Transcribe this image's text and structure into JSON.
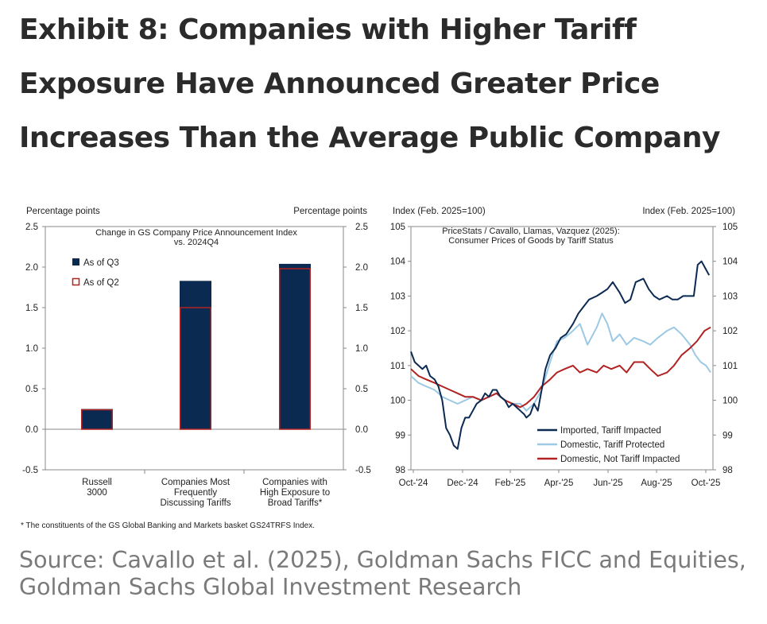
{
  "title": "Exhibit 8: Companies with Higher Tariff Exposure Have Announced Greater Price Increases Than the Average Public Company",
  "footnote": "* The constituents of the GS Global Banking and Markets basket GS24TRFS Index.",
  "source": "Source: Cavallo et al. (2025), Goldman Sachs FICC and Equities, Goldman Sachs Global Investment Research",
  "colors": {
    "navy": "#0b2a52",
    "red": "#b22222",
    "light_blue": "#9cc9e4",
    "axis": "#888888"
  },
  "chart_data": [
    {
      "type": "bar",
      "title": [
        "Change in GS Company Price Announcement Index",
        "vs. 2024Q4"
      ],
      "ylabel_left": "Percentage points",
      "ylabel_right": "Percentage points",
      "ylim": [
        -0.5,
        2.5
      ],
      "yticks": [
        "-0.5",
        "0.0",
        "0.5",
        "1.0",
        "1.5",
        "2.0",
        "2.5"
      ],
      "categories": [
        [
          "Russell",
          "3000"
        ],
        [
          "Companies Most",
          "Frequently",
          "Discussing Tariffs"
        ],
        [
          "Companies with",
          "High Exposure to",
          "Broad Tariffs*"
        ]
      ],
      "series": [
        {
          "name": "As of Q3",
          "values": [
            0.25,
            1.83,
            2.04
          ],
          "color": "#0b2a52"
        },
        {
          "name": "As of Q2",
          "values": [
            0.24,
            1.5,
            1.98
          ],
          "color": "#b22222",
          "style": "outline"
        }
      ],
      "legend": "top-left",
      "grid": false
    },
    {
      "type": "line",
      "title": [
        "PriceStats / Cavallo, Llamas, Vazquez (2025):",
        "Consumer Prices of Goods by Tariff Status"
      ],
      "ylabel_left": "Index (Feb. 2025=100)",
      "ylabel_right": "Index (Feb. 2025=100)",
      "ylim": [
        98,
        105
      ],
      "yticks": [
        "98",
        "99",
        "100",
        "101",
        "102",
        "103",
        "104",
        "105"
      ],
      "xlim": [
        "2024-10-01",
        "2025-10-31"
      ],
      "xticks": [
        "Oct-'24",
        "Dec-'24",
        "Feb-'25",
        "Apr-'25",
        "Jun-'25",
        "Aug-'25",
        "Oct-'25"
      ],
      "legend": "bottom-right",
      "grid": false,
      "series": [
        {
          "name": "Imported, Tariff Impacted",
          "color": "#0b2a52",
          "x": [
            "2024-10-01",
            "2024-10-06",
            "2024-10-11",
            "2024-10-16",
            "2024-10-21",
            "2024-10-26",
            "2024-11-01",
            "2024-11-06",
            "2024-11-11",
            "2024-11-16",
            "2024-11-21",
            "2024-11-26",
            "2024-12-01",
            "2024-12-06",
            "2024-12-11",
            "2024-12-16",
            "2024-12-21",
            "2024-12-26",
            "2025-01-01",
            "2025-01-06",
            "2025-01-11",
            "2025-01-16",
            "2025-01-21",
            "2025-01-26",
            "2025-02-01",
            "2025-02-06",
            "2025-02-11",
            "2025-02-16",
            "2025-02-21",
            "2025-02-26",
            "2025-03-01",
            "2025-03-06",
            "2025-03-11",
            "2025-03-16",
            "2025-03-21",
            "2025-03-26",
            "2025-04-01",
            "2025-04-08",
            "2025-04-15",
            "2025-04-22",
            "2025-05-01",
            "2025-05-08",
            "2025-05-15",
            "2025-05-22",
            "2025-06-01",
            "2025-06-08",
            "2025-06-15",
            "2025-06-22",
            "2025-07-01",
            "2025-07-08",
            "2025-07-15",
            "2025-07-22",
            "2025-08-01",
            "2025-08-08",
            "2025-08-15",
            "2025-08-22",
            "2025-09-01",
            "2025-09-08",
            "2025-09-15",
            "2025-09-22",
            "2025-10-01",
            "2025-10-06",
            "2025-10-11",
            "2025-10-16",
            "2025-10-21",
            "2025-10-26"
          ],
          "y": [
            101.4,
            101.1,
            101.0,
            100.9,
            101.0,
            100.7,
            100.6,
            100.4,
            100.0,
            99.2,
            99.0,
            98.7,
            98.6,
            99.2,
            99.5,
            99.5,
            99.7,
            99.9,
            100.0,
            100.2,
            100.1,
            100.3,
            100.3,
            100.1,
            100.0,
            99.8,
            99.9,
            99.8,
            99.7,
            99.6,
            99.5,
            99.6,
            99.9,
            99.7,
            100.3,
            100.9,
            101.3,
            101.5,
            101.8,
            101.9,
            102.2,
            102.5,
            102.7,
            102.9,
            103.0,
            103.1,
            103.2,
            103.4,
            103.1,
            102.8,
            102.9,
            103.4,
            103.5,
            103.2,
            103.0,
            102.9,
            103.0,
            102.9,
            102.9,
            103.0,
            103.0,
            103.0,
            103.9,
            104.0,
            103.8,
            103.6
          ]
        },
        {
          "name": "Domestic, Tariff Protected",
          "color": "#9cc9e4",
          "x": [
            "2024-10-01",
            "2024-10-11",
            "2024-10-21",
            "2024-11-01",
            "2024-11-11",
            "2024-11-21",
            "2024-12-01",
            "2024-12-11",
            "2024-12-21",
            "2025-01-01",
            "2025-01-11",
            "2025-01-21",
            "2025-02-01",
            "2025-02-11",
            "2025-02-21",
            "2025-03-01",
            "2025-03-11",
            "2025-03-21",
            "2025-04-01",
            "2025-04-10",
            "2025-04-20",
            "2025-05-01",
            "2025-05-10",
            "2025-05-20",
            "2025-06-01",
            "2025-06-08",
            "2025-06-15",
            "2025-06-22",
            "2025-07-01",
            "2025-07-10",
            "2025-07-20",
            "2025-08-01",
            "2025-08-10",
            "2025-08-20",
            "2025-09-01",
            "2025-09-10",
            "2025-09-20",
            "2025-10-01",
            "2025-10-08",
            "2025-10-15",
            "2025-10-22",
            "2025-10-28"
          ],
          "y": [
            100.7,
            100.5,
            100.4,
            100.3,
            100.1,
            100.0,
            99.9,
            100.0,
            100.1,
            100.0,
            100.1,
            100.2,
            100.0,
            99.9,
            99.9,
            99.7,
            99.9,
            100.3,
            101.1,
            101.7,
            101.8,
            102.0,
            102.2,
            101.6,
            102.1,
            102.5,
            102.2,
            101.7,
            101.9,
            101.6,
            101.8,
            101.7,
            101.6,
            101.8,
            102.0,
            102.1,
            101.9,
            101.6,
            101.3,
            101.1,
            101.0,
            100.8
          ]
        },
        {
          "name": "Domestic, Not Tariff Impacted",
          "color": "#b22222",
          "x": [
            "2024-10-01",
            "2024-10-11",
            "2024-10-21",
            "2024-11-01",
            "2024-11-11",
            "2024-11-21",
            "2024-12-01",
            "2024-12-11",
            "2024-12-21",
            "2025-01-01",
            "2025-01-11",
            "2025-01-21",
            "2025-02-01",
            "2025-02-11",
            "2025-02-21",
            "2025-03-01",
            "2025-03-11",
            "2025-03-21",
            "2025-04-01",
            "2025-04-10",
            "2025-04-20",
            "2025-05-01",
            "2025-05-10",
            "2025-05-20",
            "2025-06-01",
            "2025-06-10",
            "2025-06-20",
            "2025-07-01",
            "2025-07-10",
            "2025-07-20",
            "2025-08-01",
            "2025-08-10",
            "2025-08-20",
            "2025-09-01",
            "2025-09-10",
            "2025-09-20",
            "2025-10-01",
            "2025-10-10",
            "2025-10-20",
            "2025-10-28"
          ],
          "y": [
            100.9,
            100.7,
            100.6,
            100.5,
            100.4,
            100.3,
            100.2,
            100.1,
            100.1,
            100.0,
            100.1,
            100.2,
            100.0,
            99.9,
            99.8,
            99.9,
            100.1,
            100.4,
            100.6,
            100.8,
            100.9,
            101.0,
            100.8,
            100.9,
            100.8,
            101.0,
            100.9,
            101.0,
            100.8,
            101.1,
            101.1,
            100.9,
            100.7,
            100.8,
            101.0,
            101.3,
            101.5,
            101.7,
            102.0,
            102.1
          ]
        }
      ]
    }
  ]
}
